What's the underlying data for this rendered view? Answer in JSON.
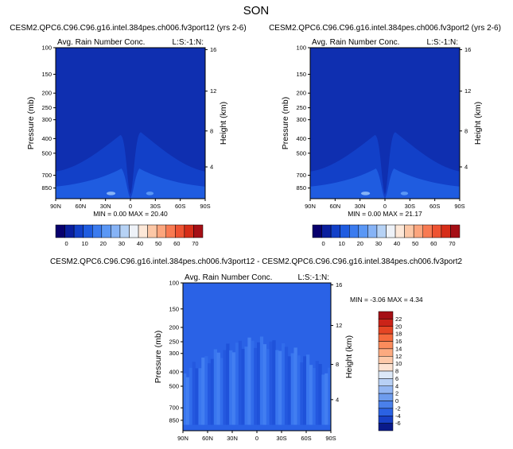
{
  "page_title": "SON",
  "colors": {
    "diverging_palette": [
      "#08006d",
      "#0a1f9e",
      "#1240c8",
      "#1f5ce0",
      "#3b7bef",
      "#5a97f5",
      "#86b3f6",
      "#b6d2f5",
      "#eef2f8",
      "#fde8d8",
      "#fcc7a6",
      "#fca57d",
      "#f87a52",
      "#ee5332",
      "#d62d18",
      "#a50f15"
    ],
    "field_background": "#0f2fb0",
    "diff_background": "#2a62e6"
  },
  "chart_data": [
    {
      "type": "heatmap",
      "title_left": "Avg. Rain Number Conc.",
      "title_right": "L:S:-1:N:",
      "case_title": "CESM2.QPC6.C96.C96.g16.intel.384pes.ch006.fv3port12 (yrs 2-6)",
      "ylabel": "Pressure (mb)",
      "ylabel_right": "Height (km)",
      "x_ticks": [
        "90N",
        "60N",
        "30N",
        "0",
        "30S",
        "60S",
        "90S"
      ],
      "y_ticks": [
        "100",
        "150",
        "200",
        "250",
        "300",
        "400",
        "500",
        "700",
        "850"
      ],
      "y_ticks_right": [
        "16",
        "12",
        "8",
        "4"
      ],
      "stats": "MIN =  0.00  MAX = 20.40",
      "colorbar_labels": [
        "0",
        "10",
        "20",
        "30",
        "40",
        "50",
        "60",
        "70"
      ]
    },
    {
      "type": "heatmap",
      "title_left": "Avg. Rain Number Conc.",
      "title_right": "L:S:-1:N:",
      "case_title": "CESM2.QPC6.C96.C96.g16.intel.384pes.ch006.fv3port2 (yrs 2-6)",
      "ylabel": "Pressure (mb)",
      "ylabel_right": "Height (km)",
      "x_ticks": [
        "90N",
        "60N",
        "30N",
        "0",
        "30S",
        "60S",
        "90S"
      ],
      "y_ticks": [
        "100",
        "150",
        "200",
        "250",
        "300",
        "400",
        "500",
        "700",
        "850"
      ],
      "y_ticks_right": [
        "16",
        "12",
        "8",
        "4"
      ],
      "stats": "MIN =  0.00  MAX = 21.17",
      "colorbar_labels": [
        "0",
        "10",
        "20",
        "30",
        "40",
        "50",
        "60",
        "70"
      ]
    },
    {
      "type": "heatmap",
      "title_left": "Avg. Rain Number Conc.",
      "title_right": "L:S:-1:N:",
      "case_title": "CESM2.QPC6.C96.C96.g16.intel.384pes.ch006.fv3port12 - CESM2.QPC6.C96.C96.g16.intel.384pes.ch006.fv3port2",
      "ylabel": "Pressure (mb)",
      "ylabel_right": "Height (km)",
      "x_ticks": [
        "90N",
        "60N",
        "30N",
        "0",
        "30S",
        "60S",
        "90S"
      ],
      "y_ticks": [
        "100",
        "150",
        "200",
        "250",
        "300",
        "400",
        "500",
        "700",
        "850"
      ],
      "y_ticks_right": [
        "16",
        "12",
        "8",
        "4"
      ],
      "stats": "MIN = -3.06  MAX =  4.34",
      "colorbar_labels": [
        "22",
        "20",
        "18",
        "16",
        "14",
        "12",
        "10",
        "8",
        "6",
        "4",
        "2",
        "0",
        "-2",
        "-4",
        "-6"
      ]
    }
  ]
}
